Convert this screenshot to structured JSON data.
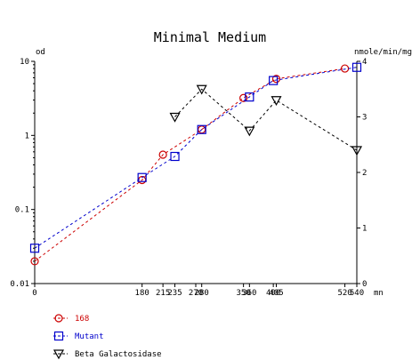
{
  "chart_data": {
    "type": "line",
    "title": "Minimal Medium",
    "xlabel": "mn",
    "ylabel_left": "od",
    "ylabel_right": "nmole/min/mg",
    "xlim": [
      0,
      540
    ],
    "ylim_left": [
      0.01,
      10
    ],
    "yscale_left": "log",
    "ylim_right": [
      0,
      4
    ],
    "x_ticks": [
      "0",
      "180",
      "215",
      "235",
      "270",
      "280",
      "350",
      "360",
      "400",
      "405",
      "520",
      "540"
    ],
    "y_ticks_left": [
      "0.01",
      "0.1",
      "1",
      "10"
    ],
    "y_ticks_right": [
      "0",
      "1",
      "2",
      "3",
      "4"
    ],
    "grid": false,
    "legend_position": "bottom-left",
    "series": [
      {
        "name": "168",
        "axis": "left",
        "marker": "circle",
        "color": "#cc0000",
        "x": [
          0,
          180,
          215,
          280,
          350,
          405,
          520
        ],
        "y": [
          0.02,
          0.25,
          0.55,
          1.2,
          3.2,
          5.8,
          8.0
        ]
      },
      {
        "name": "Mutant",
        "axis": "left",
        "marker": "square",
        "color": "#0000cc",
        "x": [
          0,
          180,
          235,
          280,
          360,
          400,
          540
        ],
        "y": [
          0.03,
          0.27,
          0.52,
          1.2,
          3.3,
          5.5,
          8.3
        ]
      },
      {
        "name": "Beta Galactosidase",
        "axis": "right",
        "marker": "triangle-down",
        "color": "#000000",
        "x": [
          235,
          280,
          360,
          405,
          540
        ],
        "y": [
          3.0,
          3.5,
          2.75,
          3.3,
          2.4
        ]
      }
    ]
  }
}
